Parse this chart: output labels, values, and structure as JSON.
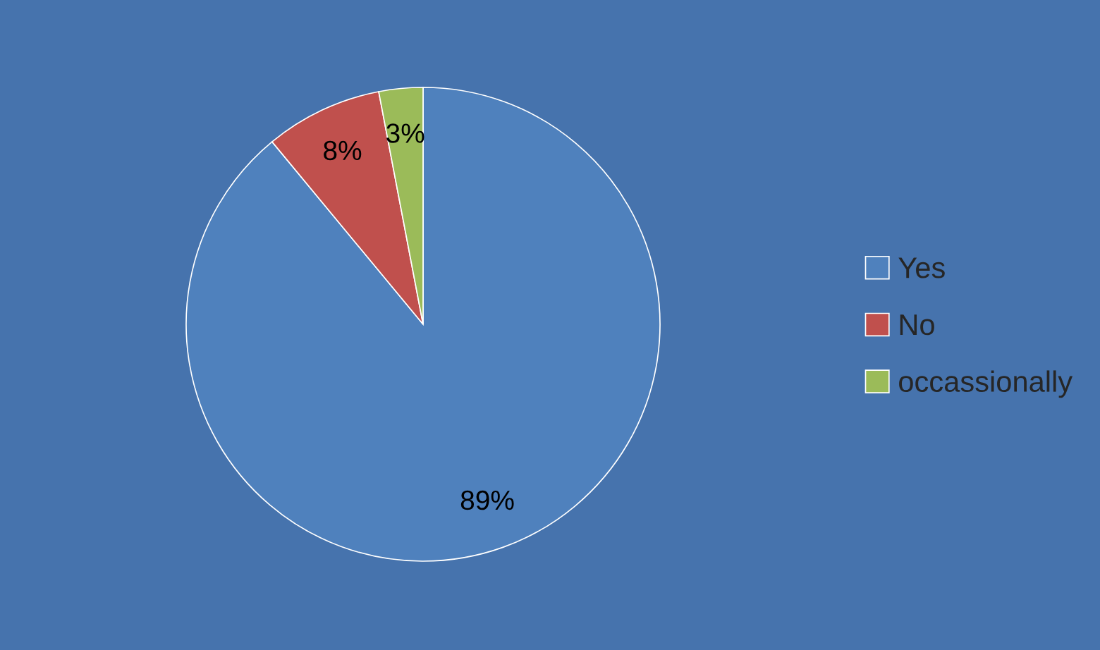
{
  "chart_data": {
    "type": "pie",
    "categories": [
      "Yes",
      "No",
      "occassionally"
    ],
    "values": [
      89,
      8,
      3
    ],
    "colors": [
      "#4f81bd",
      "#c0504d",
      "#9bbb59"
    ],
    "value_labels": [
      "89%",
      "8%",
      "3%"
    ],
    "legend": "right"
  }
}
